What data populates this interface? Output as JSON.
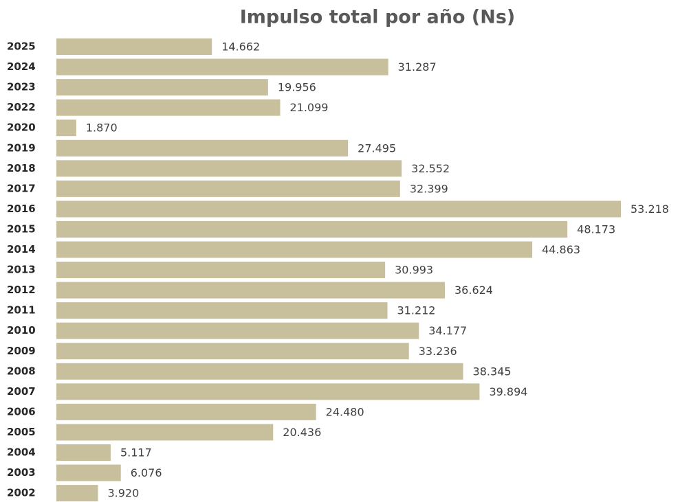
{
  "chart_data": {
    "type": "bar",
    "orientation": "horizontal",
    "title": "Impulso total por año (Ns)",
    "categories": [
      "2025",
      "2024",
      "2023",
      "2022",
      "2020",
      "2019",
      "2018",
      "2017",
      "2016",
      "2015",
      "2014",
      "2013",
      "2012",
      "2011",
      "2010",
      "2009",
      "2008",
      "2007",
      "2006",
      "2005",
      "2004",
      "2003",
      "2002"
    ],
    "values": [
      14662,
      31287,
      19956,
      21099,
      1870,
      27495,
      32552,
      32399,
      53218,
      48173,
      44863,
      30993,
      36624,
      31212,
      34177,
      33236,
      38345,
      39894,
      24480,
      20436,
      5117,
      6076,
      3920
    ],
    "value_labels": [
      "14.662",
      "31.287",
      "19.956",
      "21.099",
      "1.870",
      "27.495",
      "32.552",
      "32.399",
      "53.218",
      "48.173",
      "44.863",
      "30.993",
      "36.624",
      "31.212",
      "34.177",
      "33.236",
      "38.345",
      "39.894",
      "24.480",
      "20.436",
      "5.117",
      "6.076",
      "3.920"
    ],
    "color": "#c8bf9c"
  }
}
